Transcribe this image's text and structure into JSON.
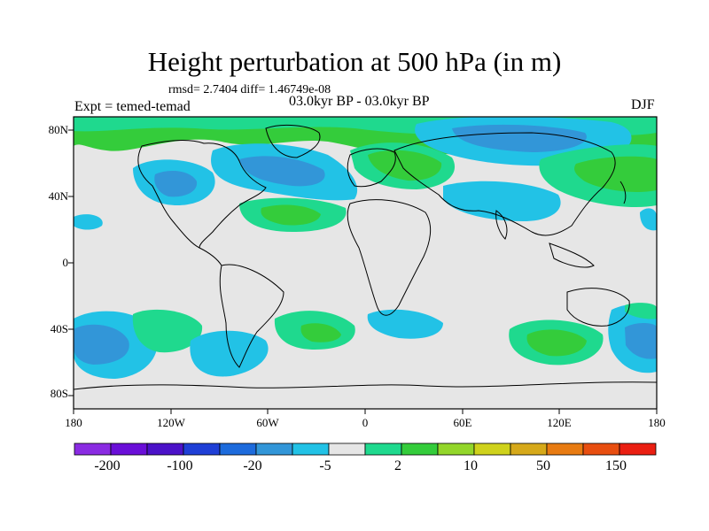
{
  "figure": {
    "title": "Height perturbation at 500 hPa (in m)",
    "stats": "rmsd= 2.7404 diff= 1.46749e-08",
    "experiment": "Expt = temed-temad",
    "period": "03.0kyr BP - 03.0kyr BP",
    "season": "DJF"
  },
  "axes": {
    "lat_labels": [
      "80N",
      "40N",
      "0",
      "40S",
      "80S"
    ],
    "lon_labels": [
      "180",
      "120W",
      "60W",
      "0",
      "60E",
      "120E",
      "180"
    ]
  },
  "colorbar": {
    "colors": [
      "#8a2be2",
      "#6a0fd8",
      "#4b12c8",
      "#1f3fd6",
      "#1d6bdc",
      "#3296d8",
      "#22c2e6",
      "#e6e6e6",
      "#1fd98e",
      "#34cc3b",
      "#93d62a",
      "#cfd21c",
      "#d6a91a",
      "#e87b12",
      "#e84e10",
      "#ea1f12"
    ],
    "labels": [
      "-200",
      "-100",
      "-20",
      "-5",
      "2",
      "10",
      "50",
      "150"
    ]
  },
  "chart_data": {
    "type": "contour-map",
    "title": "Height perturbation at 500 hPa (in m)",
    "projection": "cylindrical equidistant",
    "lon_range": [
      -180,
      180
    ],
    "lat_range": [
      -90,
      90
    ],
    "contour_levels": [
      -200,
      -150,
      -100,
      -50,
      -20,
      -10,
      -5,
      -2,
      2,
      5,
      10,
      20,
      50,
      100,
      150,
      200
    ],
    "features": [
      {
        "region": "North Atlantic / Greenland",
        "sign": "negative",
        "approx_min": -20
      },
      {
        "region": "North Pacific / Alaska",
        "sign": "negative",
        "approx_min": -10
      },
      {
        "region": "Siberia / North Asia",
        "sign": "negative",
        "approx_min": -20
      },
      {
        "region": "Europe / Scandinavia",
        "sign": "positive",
        "approx_max": 10
      },
      {
        "region": "Arctic rim",
        "sign": "positive",
        "approx_max": 10
      },
      {
        "region": "Western Pacific / Japan",
        "sign": "positive",
        "approx_max": 10
      },
      {
        "region": "Central Atlantic",
        "sign": "positive",
        "approx_max": 10
      },
      {
        "region": "South Pacific 160W",
        "sign": "negative",
        "approx_min": -10
      },
      {
        "region": "South Atlantic",
        "sign": "positive",
        "approx_max": 10
      },
      {
        "region": "South Indian Ocean",
        "sign": "positive",
        "approx_max": 10
      }
    ]
  }
}
